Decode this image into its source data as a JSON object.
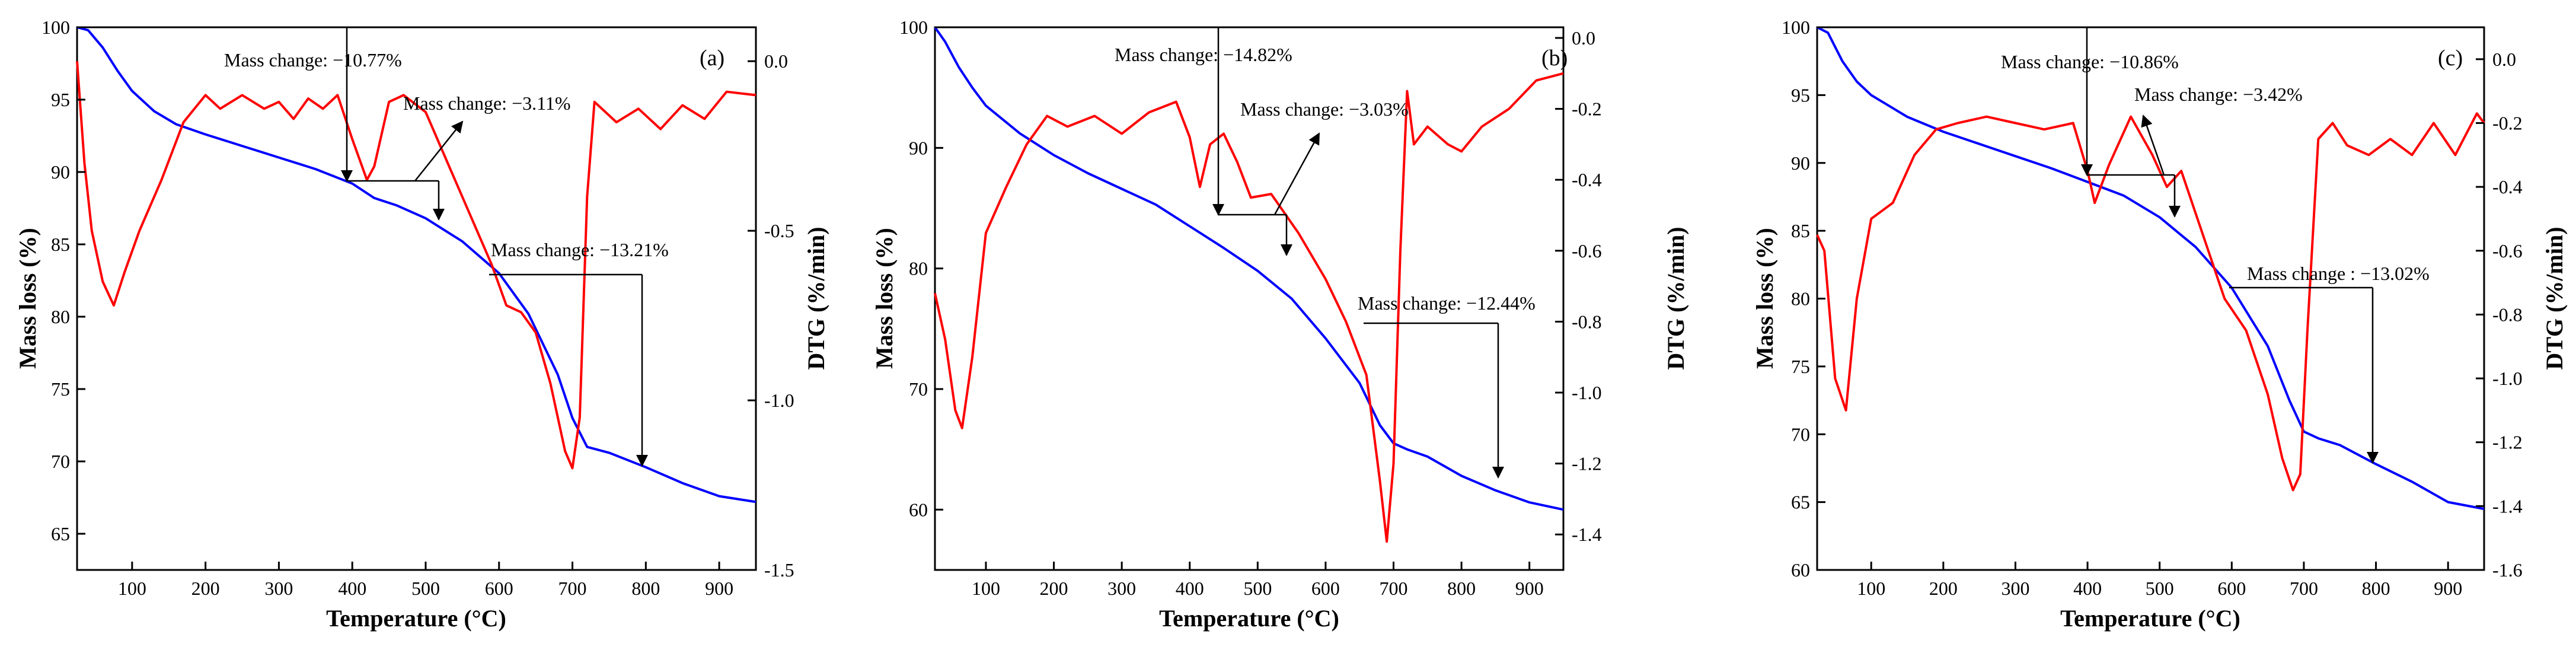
{
  "figure": {
    "mass_color": "#0000ff",
    "dtg_color": "#ff0000",
    "axis_color": "#000000"
  },
  "chart_data": [
    {
      "type": "line",
      "panel_label": "(a)",
      "xlabel": "Temperature (°C)",
      "ylabel": "Mass loss (%)",
      "y2label": "DTG (%/min)",
      "xlim": [
        25,
        950
      ],
      "ylim": [
        62.5,
        100
      ],
      "y2lim": [
        -1.5,
        0.1
      ],
      "xticks": [
        100,
        200,
        300,
        400,
        500,
        600,
        700,
        800,
        900
      ],
      "yticks": [
        65,
        70,
        75,
        80,
        85,
        90,
        95,
        100
      ],
      "y2ticks": [
        -1.5,
        -1.0,
        -0.5,
        0.0
      ],
      "y2ticklabels": [
        "-1.5",
        "-1.0",
        "-0.5",
        "0.0"
      ],
      "series": [
        {
          "name": "Mass loss",
          "axis": "left",
          "color": "#0000ff",
          "x": [
            25,
            40,
            60,
            80,
            100,
            130,
            160,
            200,
            250,
            300,
            350,
            400,
            430,
            460,
            500,
            550,
            600,
            640,
            680,
            700,
            720,
            750,
            800,
            850,
            900,
            950
          ],
          "y": [
            100,
            99.8,
            98.6,
            97.0,
            95.6,
            94.2,
            93.3,
            92.6,
            91.8,
            91.0,
            90.2,
            89.2,
            88.2,
            87.7,
            86.8,
            85.2,
            83.0,
            80.2,
            76.0,
            73.0,
            71.0,
            70.6,
            69.6,
            68.5,
            67.6,
            67.2
          ]
        },
        {
          "name": "DTG",
          "axis": "right",
          "color": "#ff0000",
          "x": [
            25,
            35,
            45,
            60,
            75,
            90,
            110,
            140,
            170,
            200,
            220,
            250,
            280,
            300,
            320,
            340,
            360,
            380,
            400,
            420,
            430,
            450,
            470,
            500,
            530,
            560,
            590,
            610,
            630,
            650,
            670,
            690,
            700,
            710,
            720,
            730,
            760,
            790,
            820,
            850,
            880,
            910,
            950
          ],
          "y": [
            0.0,
            -0.3,
            -0.5,
            -0.65,
            -0.72,
            -0.62,
            -0.5,
            -0.35,
            -0.18,
            -0.1,
            -0.14,
            -0.1,
            -0.14,
            -0.12,
            -0.17,
            -0.11,
            -0.14,
            -0.1,
            -0.23,
            -0.35,
            -0.31,
            -0.12,
            -0.1,
            -0.15,
            -0.3,
            -0.45,
            -0.6,
            -0.72,
            -0.74,
            -0.8,
            -0.95,
            -1.15,
            -1.2,
            -1.05,
            -0.4,
            -0.12,
            -0.18,
            -0.14,
            -0.2,
            -0.13,
            -0.17,
            -0.09,
            -0.1
          ]
        }
      ],
      "annotations": [
        "Mass change: −10.77%",
        "Mass change: −3.11%",
        "Mass change: −13.21%"
      ]
    },
    {
      "type": "line",
      "panel_label": "(b)",
      "xlabel": "Temperature (°C)",
      "ylabel": "Mass loss (%)",
      "y2label": "DTG (%/min)",
      "xlim": [
        25,
        950
      ],
      "ylim": [
        55,
        100
      ],
      "y2lim": [
        -1.5,
        0.03
      ],
      "xticks": [
        100,
        200,
        300,
        400,
        500,
        600,
        700,
        800,
        900
      ],
      "yticks": [
        60,
        70,
        80,
        90,
        100
      ],
      "y2ticks": [
        -1.4,
        -1.2,
        -1.0,
        -0.8,
        -0.6,
        -0.4,
        -0.2,
        0.0
      ],
      "y2ticklabels": [
        "-1.4",
        "-1.2",
        "-1.0",
        "-0.8",
        "-0.6",
        "-0.4",
        "-0.2",
        "0.0"
      ],
      "series": [
        {
          "name": "Mass loss",
          "axis": "left",
          "color": "#0000ff",
          "x": [
            25,
            40,
            60,
            80,
            100,
            150,
            200,
            250,
            300,
            350,
            400,
            450,
            500,
            550,
            600,
            650,
            680,
            700,
            720,
            750,
            800,
            850,
            900,
            950
          ],
          "y": [
            100,
            98.8,
            96.7,
            95.0,
            93.5,
            91.2,
            89.4,
            87.9,
            86.6,
            85.3,
            83.5,
            81.7,
            79.8,
            77.5,
            74.2,
            70.5,
            67.0,
            65.5,
            65.0,
            64.4,
            62.8,
            61.6,
            60.6,
            60.0
          ]
        },
        {
          "name": "DTG",
          "axis": "right",
          "color": "#ff0000",
          "x": [
            25,
            40,
            55,
            65,
            80,
            100,
            130,
            160,
            190,
            220,
            260,
            300,
            340,
            380,
            400,
            415,
            430,
            450,
            470,
            490,
            520,
            560,
            600,
            630,
            660,
            680,
            690,
            700,
            710,
            720,
            730,
            750,
            780,
            800,
            830,
            870,
            910,
            950
          ],
          "y": [
            -0.72,
            -0.85,
            -1.05,
            -1.1,
            -0.9,
            -0.55,
            -0.42,
            -0.3,
            -0.22,
            -0.25,
            -0.22,
            -0.27,
            -0.21,
            -0.18,
            -0.28,
            -0.42,
            -0.3,
            -0.27,
            -0.35,
            -0.45,
            -0.44,
            -0.55,
            -0.68,
            -0.8,
            -0.95,
            -1.25,
            -1.42,
            -1.2,
            -0.6,
            -0.15,
            -0.3,
            -0.25,
            -0.3,
            -0.32,
            -0.25,
            -0.2,
            -0.12,
            -0.1
          ]
        }
      ],
      "annotations": [
        "Mass change: −14.82%",
        "Mass change: −3.03%",
        "Mass change: −12.44%"
      ]
    },
    {
      "type": "line",
      "panel_label": "(c)",
      "xlabel": "Temperature (°C)",
      "ylabel": "Mass loss (%)",
      "y2label": "DTG (%/min)",
      "xlim": [
        25,
        950
      ],
      "ylim": [
        60,
        100
      ],
      "y2lim": [
        -1.6,
        0.1
      ],
      "xticks": [
        100,
        200,
        300,
        400,
        500,
        600,
        700,
        800,
        900
      ],
      "yticks": [
        60,
        65,
        70,
        75,
        80,
        85,
        90,
        95,
        100
      ],
      "y2ticks": [
        -1.6,
        -1.4,
        -1.2,
        -1.0,
        -0.8,
        -0.6,
        -0.4,
        -0.2,
        0.0
      ],
      "y2ticklabels": [
        "-1.6",
        "-1.4",
        "-1.2",
        "-1.0",
        "-0.8",
        "-0.6",
        "-0.4",
        "-0.2",
        "0.0"
      ],
      "series": [
        {
          "name": "Mass loss",
          "axis": "left",
          "color": "#0000ff",
          "x": [
            25,
            40,
            60,
            80,
            100,
            150,
            200,
            250,
            300,
            350,
            400,
            450,
            500,
            550,
            600,
            650,
            680,
            700,
            720,
            750,
            800,
            850,
            900,
            950
          ],
          "y": [
            100,
            99.6,
            97.5,
            96.0,
            95.0,
            93.4,
            92.3,
            91.4,
            90.5,
            89.6,
            88.6,
            87.6,
            86.0,
            83.8,
            80.8,
            76.5,
            72.5,
            70.2,
            69.7,
            69.2,
            67.8,
            66.5,
            65.0,
            64.5
          ]
        },
        {
          "name": "DTG",
          "axis": "right",
          "color": "#ff0000",
          "x": [
            25,
            35,
            50,
            65,
            80,
            100,
            130,
            160,
            190,
            220,
            260,
            300,
            340,
            380,
            400,
            410,
            430,
            460,
            490,
            510,
            530,
            560,
            590,
            620,
            650,
            670,
            685,
            695,
            705,
            720,
            740,
            760,
            790,
            820,
            850,
            880,
            910,
            940,
            950
          ],
          "y": [
            -0.55,
            -0.6,
            -1.0,
            -1.1,
            -0.75,
            -0.5,
            -0.45,
            -0.3,
            -0.22,
            -0.2,
            -0.18,
            -0.2,
            -0.22,
            -0.2,
            -0.35,
            -0.45,
            -0.33,
            -0.18,
            -0.3,
            -0.4,
            -0.35,
            -0.55,
            -0.75,
            -0.85,
            -1.05,
            -1.25,
            -1.35,
            -1.3,
            -0.85,
            -0.25,
            -0.2,
            -0.27,
            -0.3,
            -0.25,
            -0.3,
            -0.2,
            -0.3,
            -0.17,
            -0.2
          ]
        }
      ],
      "annotations": [
        "Mass change: −10.86%",
        "Mass change: −3.42%",
        "Mass change : −13.02%"
      ]
    }
  ]
}
